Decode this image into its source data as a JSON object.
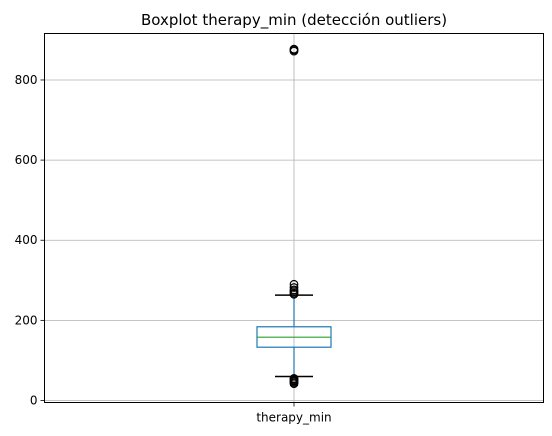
{
  "chart_data": {
    "type": "boxplot",
    "title": "Boxplot therapy_min (detección outliers)",
    "xlabel": "",
    "ylabel": "",
    "categories": [
      "therapy_min"
    ],
    "ylim": [
      -5,
      916
    ],
    "yticks": [
      0,
      200,
      400,
      600,
      800
    ],
    "grid": true,
    "series": [
      {
        "box": {
          "whisker_low": 60,
          "q1": 133,
          "median": 158,
          "q3": 184,
          "whisker_high": 263
        },
        "outliers": [
          42,
          45,
          48,
          50,
          53,
          55,
          265,
          268,
          272,
          276,
          282,
          290,
          872,
          875,
          877
        ]
      }
    ],
    "colors": {
      "box": "#1f77b4",
      "median": "#2ca02c",
      "whisker_cap": "#000000",
      "outlier": "#000000",
      "grid": "#b0b0b0"
    }
  }
}
